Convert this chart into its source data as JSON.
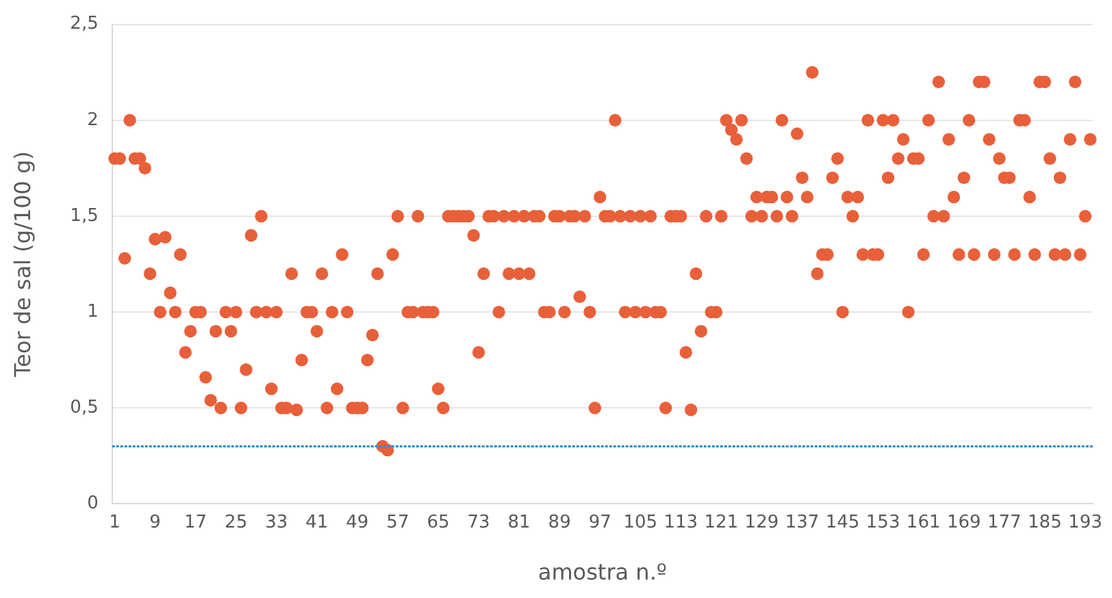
{
  "chart_data": {
    "type": "scatter",
    "xlabel": "amostra n.º",
    "ylabel": "Teor de sal (g/100 g)",
    "categories": [
      "1",
      null,
      null,
      null,
      null,
      null,
      null,
      null,
      "9",
      null,
      null,
      null,
      null,
      null,
      null,
      null,
      "17",
      null,
      null,
      null,
      null,
      null,
      null,
      null,
      "25",
      null,
      null,
      null,
      null,
      null,
      null,
      null,
      "33",
      null,
      null,
      null,
      null,
      null,
      null,
      null,
      "41",
      null,
      null,
      null,
      null,
      null,
      null,
      null,
      "49",
      null,
      null,
      null,
      null,
      null,
      null,
      null,
      "57",
      null,
      null,
      null,
      null,
      null,
      null,
      null,
      "65",
      null,
      null,
      null,
      null,
      null,
      null,
      null,
      "73",
      null,
      null,
      null,
      null,
      null,
      null,
      null,
      "81",
      null,
      null,
      null,
      null,
      null,
      null,
      null,
      "89",
      null,
      null,
      null,
      null,
      null,
      null,
      null,
      "97",
      null,
      null,
      null,
      null,
      null,
      null,
      null,
      "105",
      null,
      null,
      null,
      null,
      null,
      null,
      null,
      "113",
      null,
      null,
      null,
      null,
      null,
      null,
      null,
      "121",
      null,
      null,
      null,
      null,
      null,
      null,
      null,
      "129",
      null,
      null,
      null,
      null,
      null,
      null,
      null,
      "137",
      null,
      null,
      null,
      null,
      null,
      null,
      null,
      "145",
      null,
      null,
      null,
      null,
      null,
      null,
      null,
      "153",
      null,
      null,
      null,
      null,
      null,
      null,
      null,
      "161",
      null,
      null,
      null,
      null,
      null,
      null,
      null,
      "169",
      null,
      null,
      null,
      null,
      null,
      null,
      null,
      "177",
      null,
      null,
      null,
      null,
      null,
      null,
      null,
      "185",
      null,
      null,
      null,
      null,
      null,
      null,
      null,
      "193",
      null
    ],
    "values": [
      1.8,
      1.8,
      1.28,
      2.0,
      1.8,
      1.8,
      1.75,
      1.2,
      1.38,
      1.0,
      1.39,
      1.1,
      1.0,
      1.3,
      0.79,
      0.9,
      1.0,
      1.0,
      0.66,
      0.54,
      0.9,
      0.5,
      1.0,
      0.9,
      1.0,
      0.5,
      0.7,
      1.4,
      1.0,
      1.5,
      1.0,
      0.6,
      1.0,
      0.5,
      0.5,
      1.2,
      0.49,
      0.75,
      1.0,
      1.0,
      0.9,
      1.2,
      0.5,
      1.0,
      0.6,
      1.3,
      1.0,
      0.5,
      0.5,
      0.5,
      0.75,
      0.88,
      1.2,
      0.3,
      0.28,
      1.3,
      1.5,
      0.5,
      1.0,
      1.0,
      1.5,
      1.0,
      1.0,
      1.0,
      0.6,
      0.5,
      1.5,
      1.5,
      1.5,
      1.5,
      1.5,
      1.4,
      0.79,
      1.2,
      1.5,
      1.5,
      1.0,
      1.5,
      1.2,
      1.5,
      1.2,
      1.5,
      1.2,
      1.5,
      1.5,
      1.0,
      1.0,
      1.5,
      1.5,
      1.0,
      1.5,
      1.5,
      1.08,
      1.5,
      1.0,
      0.5,
      1.6,
      1.5,
      1.5,
      2.0,
      1.5,
      1.0,
      1.5,
      1.0,
      1.5,
      1.0,
      1.5,
      1.0,
      1.0,
      0.5,
      1.5,
      1.5,
      1.5,
      0.79,
      0.49,
      1.2,
      0.9,
      1.5,
      1.0,
      1.0,
      1.5,
      2.0,
      1.95,
      1.9,
      2.0,
      1.8,
      1.5,
      1.6,
      1.5,
      1.6,
      1.6,
      1.5,
      2.0,
      1.6,
      1.5,
      1.93,
      1.7,
      1.6,
      2.25,
      1.2,
      1.3,
      1.3,
      1.7,
      1.8,
      1.0,
      1.6,
      1.5,
      1.6,
      1.3,
      2.0,
      1.3,
      1.3,
      2.0,
      1.7,
      2.0,
      1.8,
      1.9,
      1.0,
      1.8,
      1.8,
      1.3,
      2.0,
      1.5,
      2.2,
      1.5,
      1.9,
      1.6,
      1.3,
      1.7,
      2.0,
      1.3,
      2.2,
      2.2,
      1.9,
      1.3,
      1.8,
      1.7,
      1.7,
      1.3,
      2.0,
      2.0,
      1.6,
      1.3,
      2.2,
      2.2,
      1.8,
      1.3,
      1.7,
      1.3,
      1.9,
      2.2,
      1.3,
      1.5,
      1.9
    ],
    "color": "#e8603a",
    "marker": "circle",
    "ylim": [
      0,
      2.5
    ],
    "yticks": [
      0,
      {
        "value": 0.5,
        "label": "0,5"
      },
      1,
      {
        "value": 1.5,
        "label": "1,5"
      },
      2,
      {
        "value": 2.5,
        "label": "2,5"
      }
    ],
    "grid": "y",
    "ref_lines": [
      {
        "axis": "y",
        "value": 0.3,
        "color": "#2e8fd4",
        "line_style": "dotted"
      }
    ]
  }
}
